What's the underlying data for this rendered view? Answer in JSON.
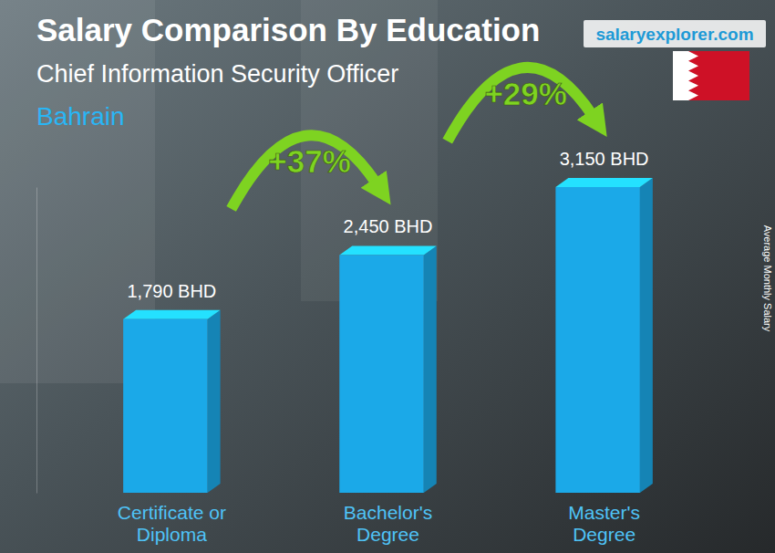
{
  "chart_data": {
    "type": "bar",
    "title": "Salary Comparison By Education",
    "subtitle": "Chief Information Security Officer",
    "location": "Bahrain",
    "brand": "salaryexplorer.com",
    "ylabel": "Average Monthly Salary",
    "categories": [
      "Certificate or Diploma",
      "Bachelor's Degree",
      "Master's Degree"
    ],
    "values": [
      1790,
      2450,
      3150
    ],
    "value_labels": [
      "1,790 BHD",
      "2,450 BHD",
      "3,150 BHD"
    ],
    "color": "#1ba9e8",
    "ylim": [
      0,
      3150
    ],
    "tick_labels": false,
    "data_labels": true,
    "annotations": [
      "+37%",
      "+29%"
    ]
  }
}
